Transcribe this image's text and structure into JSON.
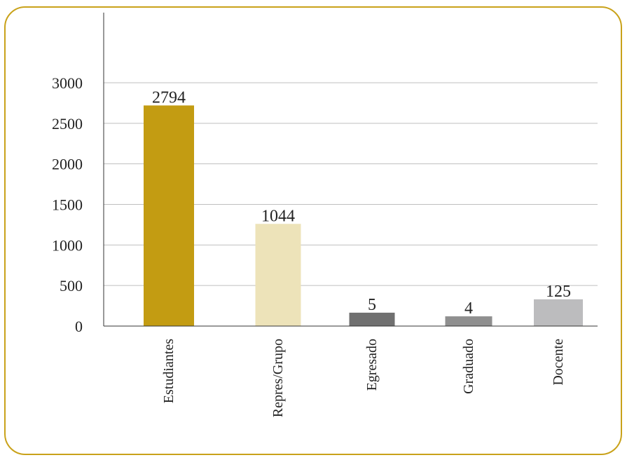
{
  "chart_data": {
    "type": "bar",
    "title": "",
    "xlabel": "",
    "ylabel": "",
    "categories": [
      "Estudiantes",
      "Repres/Grupo",
      "Egresado",
      "Graduado",
      "Docente"
    ],
    "values": [
      2794,
      1044,
      5,
      4,
      125
    ],
    "data_labels": [
      "2794",
      "1044",
      "5",
      "4",
      "125"
    ],
    "bar_heights_on_axis": [
      2720,
      1260,
      165,
      120,
      330
    ],
    "bar_colors": [
      "#c39c12",
      "#ede3b9",
      "#707070",
      "#8f8f8f",
      "#bcbcbe"
    ],
    "ylim": [
      0,
      3000
    ],
    "yticks": [
      0,
      500,
      1000,
      1500,
      2000,
      2500,
      3000
    ],
    "ytick_labels": [
      "0",
      "500",
      "1000",
      "1500",
      "2000",
      "2500",
      "3000"
    ],
    "grid": true,
    "legend": "none",
    "frame_color": "#c9a21a"
  }
}
